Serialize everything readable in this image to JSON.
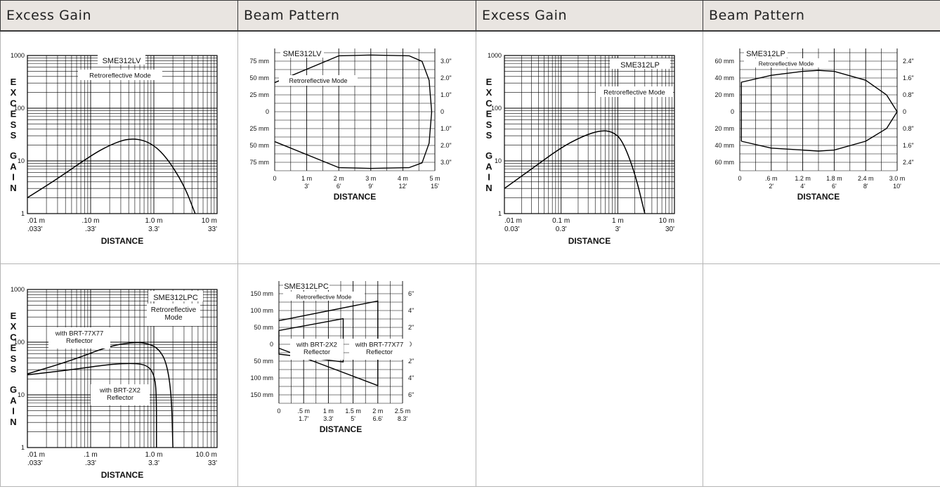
{
  "headers": [
    "Excess Gain",
    "Beam Pattern",
    "Excess Gain",
    "Beam Pattern"
  ],
  "charts": {
    "eg1": {
      "model": "SME312LV",
      "mode": [
        "Retroreflective Mode"
      ],
      "ylabel": "EXCESS GAIN",
      "xlabel": "DISTANCE",
      "y_ticks": [
        "1000",
        "100",
        "10",
        "1"
      ],
      "x_ticks_m": [
        ".01 m",
        ".10 m",
        "1.0 m",
        "10 m"
      ],
      "x_ticks_ft": [
        ".033'",
        ".33'",
        "3.3'",
        "33'"
      ],
      "notes": []
    },
    "bp1": {
      "model": "SME312LV",
      "mode": "Retroreflective Mode",
      "xlabel": "DISTANCE",
      "left_ticks": [
        "75 mm",
        "50 mm",
        "25 mm",
        "0",
        "25 mm",
        "50 mm",
        "75 mm"
      ],
      "right_ticks": [
        "3.0\"",
        "2.0\"",
        "1.0\"",
        "0",
        "1.0\"",
        "2.0\"",
        "3.0\""
      ],
      "x_ticks_m": [
        "0",
        "1 m",
        "2 m",
        "3 m",
        "4 m",
        "5 m"
      ],
      "x_ticks_ft": [
        "",
        "3'",
        "6'",
        "9'",
        "12'",
        "15'"
      ],
      "notes": []
    },
    "eg2": {
      "model": "SME312LP",
      "mode": [
        "Retroreflective Mode"
      ],
      "ylabel": "EXCESS GAIN",
      "xlabel": "DISTANCE",
      "y_ticks": [
        "1000",
        "100",
        "10",
        "1"
      ],
      "x_ticks_m": [
        ".01 m",
        "0.1 m",
        "1 m",
        "10 m"
      ],
      "x_ticks_ft": [
        "0.03'",
        "0.3'",
        "3'",
        "30'"
      ],
      "notes": []
    },
    "bp2": {
      "model": "SME312LP",
      "mode": "Retroreflective Mode",
      "xlabel": "DISTANCE",
      "left_ticks": [
        "60 mm",
        "40 mm",
        "20 mm",
        "0",
        "20 mm",
        "40 mm",
        "60 mm"
      ],
      "right_ticks": [
        "2.4\"",
        "1.6\"",
        "0.8\"",
        "0",
        "0.8\"",
        "1.6\"",
        "2.4\""
      ],
      "x_ticks_m": [
        "0",
        ".6 m",
        "1.2 m",
        "1.8 m",
        "2.4 m",
        "3.0 m"
      ],
      "x_ticks_ft": [
        "",
        "2'",
        "4'",
        "6'",
        "8'",
        "10'"
      ],
      "notes": []
    },
    "eg3": {
      "model": "SME312LPC",
      "mode": [
        "Retroreflective",
        "Mode"
      ],
      "ylabel": "EXCESS GAIN",
      "xlabel": "DISTANCE",
      "y_ticks": [
        "1000",
        "100",
        "10",
        "1"
      ],
      "x_ticks_m": [
        ".01 m",
        ".1 m",
        "1.0 m",
        "10.0 m"
      ],
      "x_ticks_ft": [
        ".033'",
        ".33'",
        "3.3'",
        "33'"
      ],
      "notes": [
        [
          "with BRT-77X77",
          "Reflector"
        ],
        [
          "with BRT-2X2",
          "Reflector"
        ]
      ]
    },
    "bp3": {
      "model": "SME312LPC",
      "mode": "Retroreflective Mode",
      "xlabel": "DISTANCE",
      "left_ticks": [
        "150 mm",
        "100 mm",
        "50 mm",
        "0",
        "50 mm",
        "100 mm",
        "150 mm"
      ],
      "right_ticks": [
        "6\"",
        "4\"",
        "2\"",
        "0",
        "2\"",
        "4\"",
        "6\""
      ],
      "x_ticks_m": [
        "0",
        ".5 m",
        "1 m",
        "1.5 m",
        "2 m",
        "2.5 m"
      ],
      "x_ticks_ft": [
        "",
        "1.7'",
        "3.3'",
        "5'",
        "6.6'",
        "8.3'"
      ],
      "notes": [
        [
          "with BRT-2X2",
          "Reflector"
        ],
        [
          "with BRT-77X77",
          "Reflector"
        ]
      ]
    }
  },
  "chart_data": [
    {
      "id": "eg1",
      "type": "line",
      "title": "SME312LV",
      "xlabel": "DISTANCE",
      "ylabel": "EXCESS GAIN",
      "x_scale": "log",
      "y_scale": "log",
      "xlim": [
        0.01,
        10
      ],
      "ylim": [
        1,
        1000
      ],
      "grid": true,
      "series": [
        {
          "x": [
            0.01,
            0.03,
            0.1,
            0.2,
            0.4,
            0.8,
            1.5,
            3,
            4.5
          ],
          "y": [
            2,
            4.6,
            12.5,
            20,
            27,
            24,
            13,
            3.5,
            1
          ]
        }
      ]
    },
    {
      "id": "bp1",
      "type": "line",
      "title": "SME312LV",
      "xlabel": "DISTANCE",
      "x_unit": "m",
      "y_unit": "mm",
      "xlim": [
        0,
        5
      ],
      "ylim": [
        -75,
        75
      ],
      "grid": true,
      "series": [
        {
          "x": [
            0,
            2,
            3,
            4.2,
            4.6,
            4.82,
            4.9,
            4.82,
            4.6,
            4.2,
            3,
            2,
            0
          ],
          "y": [
            37,
            71,
            72,
            71,
            64,
            40,
            0,
            -40,
            -65,
            -71,
            -72,
            -71,
            -38
          ]
        }
      ]
    },
    {
      "id": "eg2",
      "type": "line",
      "title": "SME312LP",
      "xlabel": "DISTANCE",
      "ylabel": "EXCESS GAIN",
      "x_scale": "log",
      "y_scale": "log",
      "xlim": [
        0.01,
        10
      ],
      "ylim": [
        1,
        1000
      ],
      "grid": true,
      "series": [
        {
          "x": [
            0.01,
            0.03,
            0.1,
            0.25,
            0.5,
            0.8,
            1.2,
            2,
            3
          ],
          "y": [
            3,
            7,
            18,
            30,
            38,
            36,
            25,
            6,
            1
          ]
        }
      ]
    },
    {
      "id": "bp2",
      "type": "line",
      "title": "SME312LP",
      "xlabel": "DISTANCE",
      "x_unit": "m",
      "y_unit": "mm",
      "xlim": [
        0,
        3
      ],
      "ylim": [
        -60,
        60
      ],
      "grid": true,
      "series": [
        {
          "x": [
            0.03,
            0.03,
            0.6,
            1.2,
            1.5,
            1.8,
            2.4,
            2.8,
            3.0,
            2.8,
            2.4,
            1.8,
            1.5,
            1.2,
            0.6,
            0.03,
            0.03
          ],
          "y": [
            -30,
            30,
            37,
            41,
            42,
            41,
            32,
            17,
            0,
            -17,
            -30,
            -39,
            -40,
            -39,
            -37,
            -30,
            -30
          ]
        }
      ]
    },
    {
      "id": "eg3",
      "type": "line",
      "title": "SME312LPC",
      "xlabel": "DISTANCE",
      "ylabel": "EXCESS GAIN",
      "x_scale": "log",
      "y_scale": "log",
      "xlim": [
        0.01,
        10
      ],
      "ylim": [
        1,
        1000
      ],
      "grid": true,
      "series": [
        {
          "name": "with BRT-77X77 Reflector",
          "x": [
            0.01,
            0.05,
            0.2,
            0.5,
            0.8,
            1.2,
            1.6,
            1.9,
            2.0
          ],
          "y": [
            25,
            45,
            85,
            100,
            95,
            75,
            40,
            10,
            1
          ]
        },
        {
          "name": "with BRT-2X2 Reflector",
          "x": [
            0.01,
            0.05,
            0.2,
            0.5,
            0.8,
            1.0,
            1.1,
            1.1
          ],
          "y": [
            24,
            30,
            38,
            40,
            36,
            25,
            12,
            1
          ]
        }
      ]
    },
    {
      "id": "bp3",
      "type": "line",
      "title": "SME312LPC",
      "xlabel": "DISTANCE",
      "x_unit": "m",
      "y_unit": "mm",
      "xlim": [
        0,
        2.5
      ],
      "ylim": [
        -150,
        150
      ],
      "grid": true,
      "series": [
        {
          "name": "with BRT-2X2 Reflector",
          "x": [
            0,
            1.3,
            1.3,
            0,
            0
          ],
          "y": [
            35,
            65,
            -45,
            -25,
            35
          ]
        },
        {
          "name": "with BRT-77X77 Reflector",
          "x": [
            0,
            2.0,
            2.0,
            0
          ],
          "y": [
            60,
            110,
            -105,
            -10
          ]
        }
      ]
    }
  ]
}
